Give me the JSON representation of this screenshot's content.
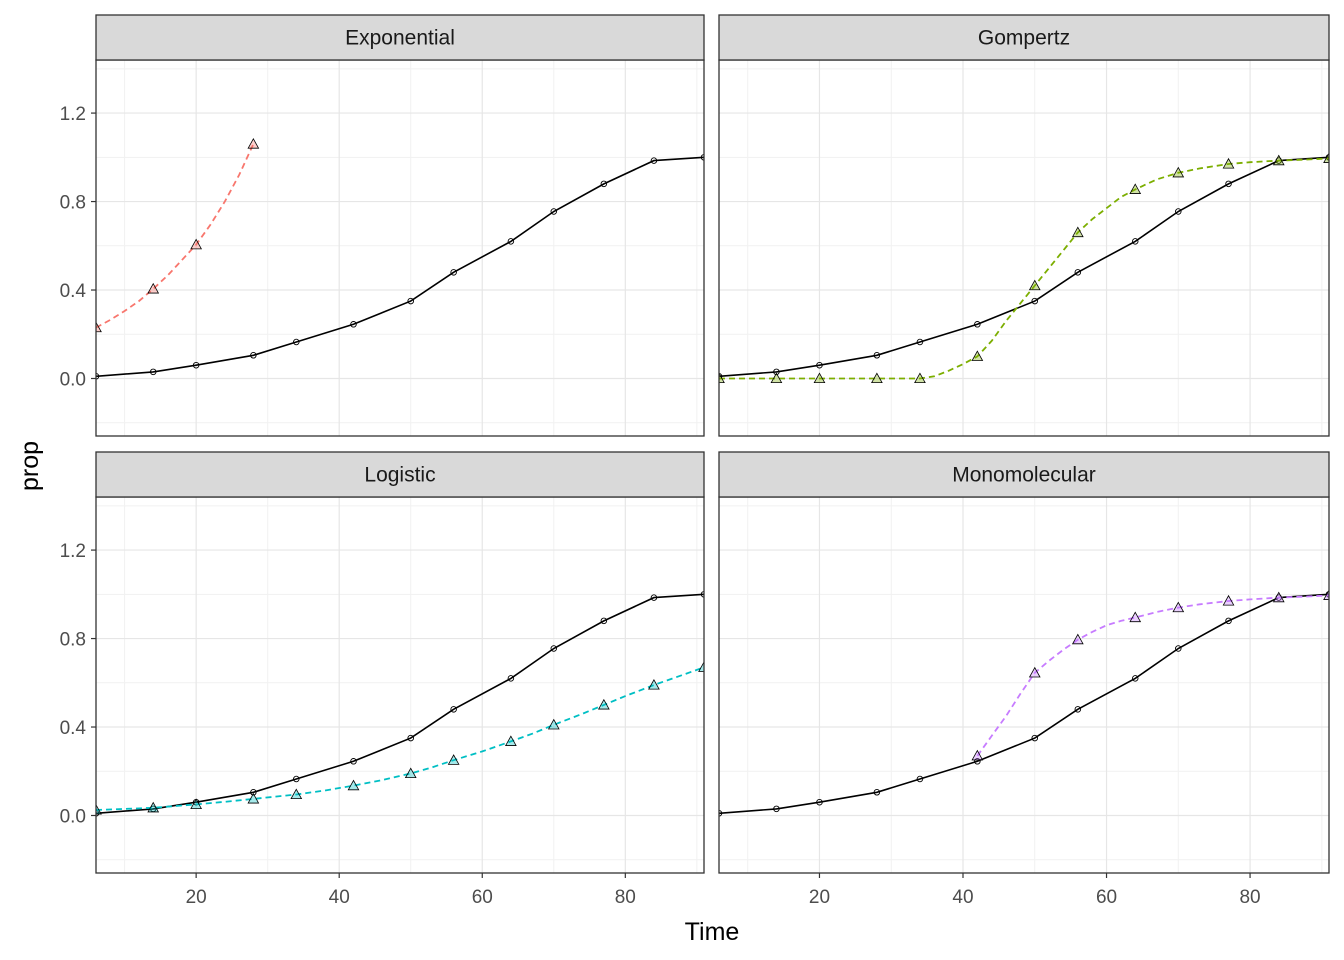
{
  "chart_data": {
    "type": "line",
    "facets": "2x2",
    "xlabel": "Time",
    "ylabel": "prop",
    "xlim": [
      6,
      91
    ],
    "ylim": [
      -0.26,
      1.44
    ],
    "x_ticks": [
      20,
      40,
      60,
      80
    ],
    "y_ticks": [
      0.0,
      0.4,
      0.8,
      1.2
    ],
    "y_tick_labels": [
      "0.0",
      "0.4",
      "0.8",
      "1.2"
    ],
    "observed": {
      "style": "solid",
      "marker": "circle",
      "color": "#000000",
      "x": [
        6,
        14,
        20,
        28,
        34,
        42,
        50,
        56,
        64,
        70,
        77,
        84,
        91
      ],
      "y": [
        0.01,
        0.03,
        0.06,
        0.105,
        0.165,
        0.245,
        0.35,
        0.48,
        0.62,
        0.755,
        0.88,
        0.985,
        1.0
      ]
    },
    "panels": [
      {
        "title": "Exponential",
        "color": "#F8766D",
        "fitted_x": [
          6,
          14,
          20,
          28
        ],
        "fitted_y": [
          0.23,
          0.405,
          0.605,
          1.06
        ],
        "curve_x": [
          6,
          8,
          10,
          12,
          14,
          16,
          18,
          20,
          22,
          24,
          26,
          28
        ],
        "curve_y": [
          0.23,
          0.265,
          0.305,
          0.35,
          0.405,
          0.465,
          0.535,
          0.605,
          0.695,
          0.8,
          0.92,
          1.06
        ]
      },
      {
        "title": "Gompertz",
        "color": "#7CAE00",
        "fitted_x": [
          6,
          14,
          20,
          28,
          34,
          42,
          50,
          56,
          64,
          70,
          77,
          84,
          91
        ],
        "fitted_y": [
          0.0,
          0.0,
          0.0,
          0.0,
          0.0,
          0.1,
          0.42,
          0.66,
          0.855,
          0.93,
          0.97,
          0.985,
          0.995
        ],
        "curve_x": [
          6,
          10,
          14,
          20,
          28,
          34,
          36,
          38,
          40,
          42,
          44,
          46,
          48,
          50,
          52,
          54,
          56,
          58,
          60,
          62,
          64,
          67,
          70,
          73,
          77,
          80,
          84,
          88,
          91
        ],
        "curve_y": [
          0.0,
          0.0,
          0.0,
          0.0,
          0.0,
          0.0,
          0.01,
          0.035,
          0.065,
          0.1,
          0.17,
          0.26,
          0.34,
          0.42,
          0.5,
          0.58,
          0.66,
          0.72,
          0.77,
          0.82,
          0.855,
          0.9,
          0.93,
          0.95,
          0.97,
          0.978,
          0.985,
          0.99,
          0.995
        ]
      },
      {
        "title": "Logistic",
        "color": "#00BFC4",
        "fitted_x": [
          6,
          14,
          20,
          28,
          34,
          42,
          50,
          56,
          64,
          70,
          77,
          84,
          91
        ],
        "fitted_y": [
          0.025,
          0.035,
          0.05,
          0.075,
          0.095,
          0.135,
          0.19,
          0.25,
          0.335,
          0.41,
          0.5,
          0.59,
          0.67
        ],
        "curve_x": [
          6,
          10,
          14,
          18,
          20,
          24,
          28,
          31,
          34,
          38,
          42,
          46,
          50,
          53,
          56,
          60,
          64,
          67,
          70,
          74,
          77,
          80,
          84,
          88,
          91
        ],
        "curve_y": [
          0.025,
          0.03,
          0.035,
          0.045,
          0.05,
          0.062,
          0.075,
          0.085,
          0.095,
          0.113,
          0.135,
          0.16,
          0.19,
          0.218,
          0.25,
          0.29,
          0.335,
          0.37,
          0.41,
          0.46,
          0.5,
          0.54,
          0.59,
          0.635,
          0.67
        ]
      },
      {
        "title": "Monomolecular",
        "color": "#C77CFF",
        "fitted_x": [
          42,
          50,
          56,
          64,
          70,
          77,
          84,
          91
        ],
        "fitted_y": [
          0.27,
          0.645,
          0.795,
          0.895,
          0.94,
          0.97,
          0.985,
          0.995
        ],
        "curve_x": [
          42,
          44,
          46,
          48,
          50,
          52,
          54,
          56,
          58,
          60,
          62,
          64,
          67,
          70,
          73,
          77,
          80,
          84,
          88,
          91
        ],
        "curve_y": [
          0.27,
          0.36,
          0.45,
          0.55,
          0.645,
          0.7,
          0.75,
          0.795,
          0.83,
          0.86,
          0.88,
          0.895,
          0.92,
          0.94,
          0.955,
          0.97,
          0.977,
          0.985,
          0.99,
          0.995
        ]
      }
    ]
  }
}
